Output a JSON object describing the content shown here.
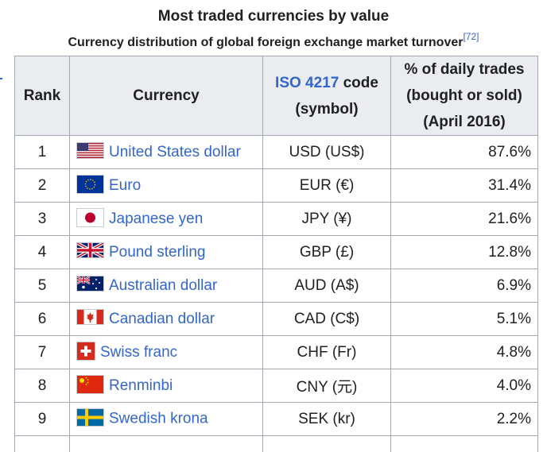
{
  "caption": {
    "title": "Most traded currencies by value",
    "subtitle": "Currency distribution of global foreign exchange market turnover",
    "ref": "[72]"
  },
  "table": {
    "headers": {
      "rank": "Rank",
      "currency": "Currency",
      "iso_link": "ISO 4217",
      "iso_rest": " code",
      "iso_line2": "(symbol)",
      "pct_line1": "% of daily trades",
      "pct_line2": "(bought or sold)",
      "pct_line3": "(April 2016)"
    },
    "rows": [
      {
        "rank": "1",
        "currency": "United States dollar",
        "code": "USD (US$)",
        "pct": "87.6%",
        "flag": "us-flag-icon"
      },
      {
        "rank": "2",
        "currency": "Euro",
        "code": "EUR (€)",
        "pct": "31.4%",
        "flag": "eu-flag-icon"
      },
      {
        "rank": "3",
        "currency": "Japanese yen",
        "code": "JPY (¥)",
        "pct": "21.6%",
        "flag": "japan-flag-icon"
      },
      {
        "rank": "4",
        "currency": "Pound sterling",
        "code": "GBP (£)",
        "pct": "12.8%",
        "flag": "uk-flag-icon"
      },
      {
        "rank": "5",
        "currency": "Australian dollar",
        "code": "AUD (A$)",
        "pct": "6.9%",
        "flag": "australia-flag-icon"
      },
      {
        "rank": "6",
        "currency": "Canadian dollar",
        "code": "CAD (C$)",
        "pct": "5.1%",
        "flag": "canada-flag-icon"
      },
      {
        "rank": "7",
        "currency": "Swiss franc",
        "code": "CHF (Fr)",
        "pct": "4.8%",
        "flag": "swiss-flag-icon"
      },
      {
        "rank": "8",
        "currency": "Renminbi",
        "code": "CNY (元)",
        "pct": "4.0%",
        "flag": "china-flag-icon"
      },
      {
        "rank": "9",
        "currency": "Swedish krona",
        "code": "SEK (kr)",
        "pct": "2.2%",
        "flag": "sweden-flag-icon"
      }
    ]
  },
  "colors": {
    "link": "#3366cc",
    "header_bg": "#eaecf0",
    "border": "#a2a9b1"
  }
}
